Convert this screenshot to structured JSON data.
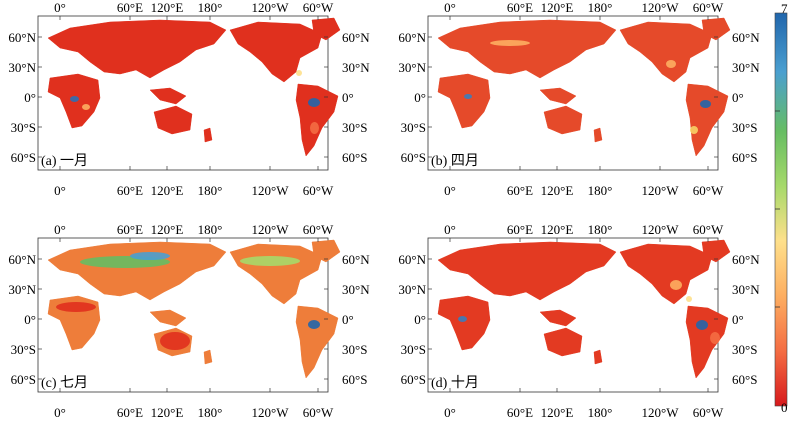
{
  "figure": {
    "panels": [
      {
        "label": "(a) 一月"
      },
      {
        "label": "(b) 四月"
      },
      {
        "label": "(c) 七月"
      },
      {
        "label": "(d) 十月"
      }
    ],
    "lon_ticks": [
      "0°",
      "60°E",
      "120°E",
      "180°",
      "120°W",
      "60°W"
    ],
    "lat_ticks": [
      "60°N",
      "30°N",
      "0°",
      "30°S",
      "60°S"
    ],
    "colorbar": {
      "max_label": "7",
      "min_label": "0",
      "colors": [
        "#d7191c",
        "#f46d43",
        "#fdae61",
        "#fee08b",
        "#a6d96a",
        "#66bd63",
        "#4a9fd0",
        "#2166ac"
      ]
    }
  }
}
